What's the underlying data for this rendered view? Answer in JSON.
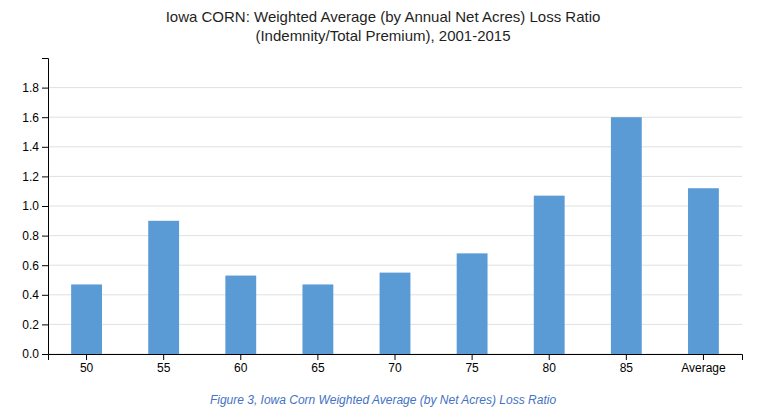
{
  "chart_data": {
    "type": "bar",
    "title": "Iowa CORN: Weighted Average (by Annual Net Acres) Loss Ratio",
    "subtitle": "(Indemnity/Total Premium), 2001-2015",
    "annotations": [
      "Figure 3, Iowa Corn Weighted Average (by Net Acres) Loss Ratio"
    ],
    "categories": [
      "50",
      "55",
      "60",
      "65",
      "70",
      "75",
      "80",
      "85",
      "Average"
    ],
    "values": [
      0.47,
      0.9,
      0.53,
      0.47,
      0.55,
      0.68,
      1.07,
      1.6,
      1.12
    ],
    "color": "#5B9BD5",
    "ylim": [
      0.0,
      2.0
    ],
    "yticks": [
      {
        "value": 0.0,
        "label": "0.0"
      },
      0.2,
      0.4,
      0.6,
      0.8,
      {
        "value": 1.0,
        "label": "1.0"
      },
      1.2,
      1.4,
      1.6,
      1.8
    ],
    "grid": true
  }
}
